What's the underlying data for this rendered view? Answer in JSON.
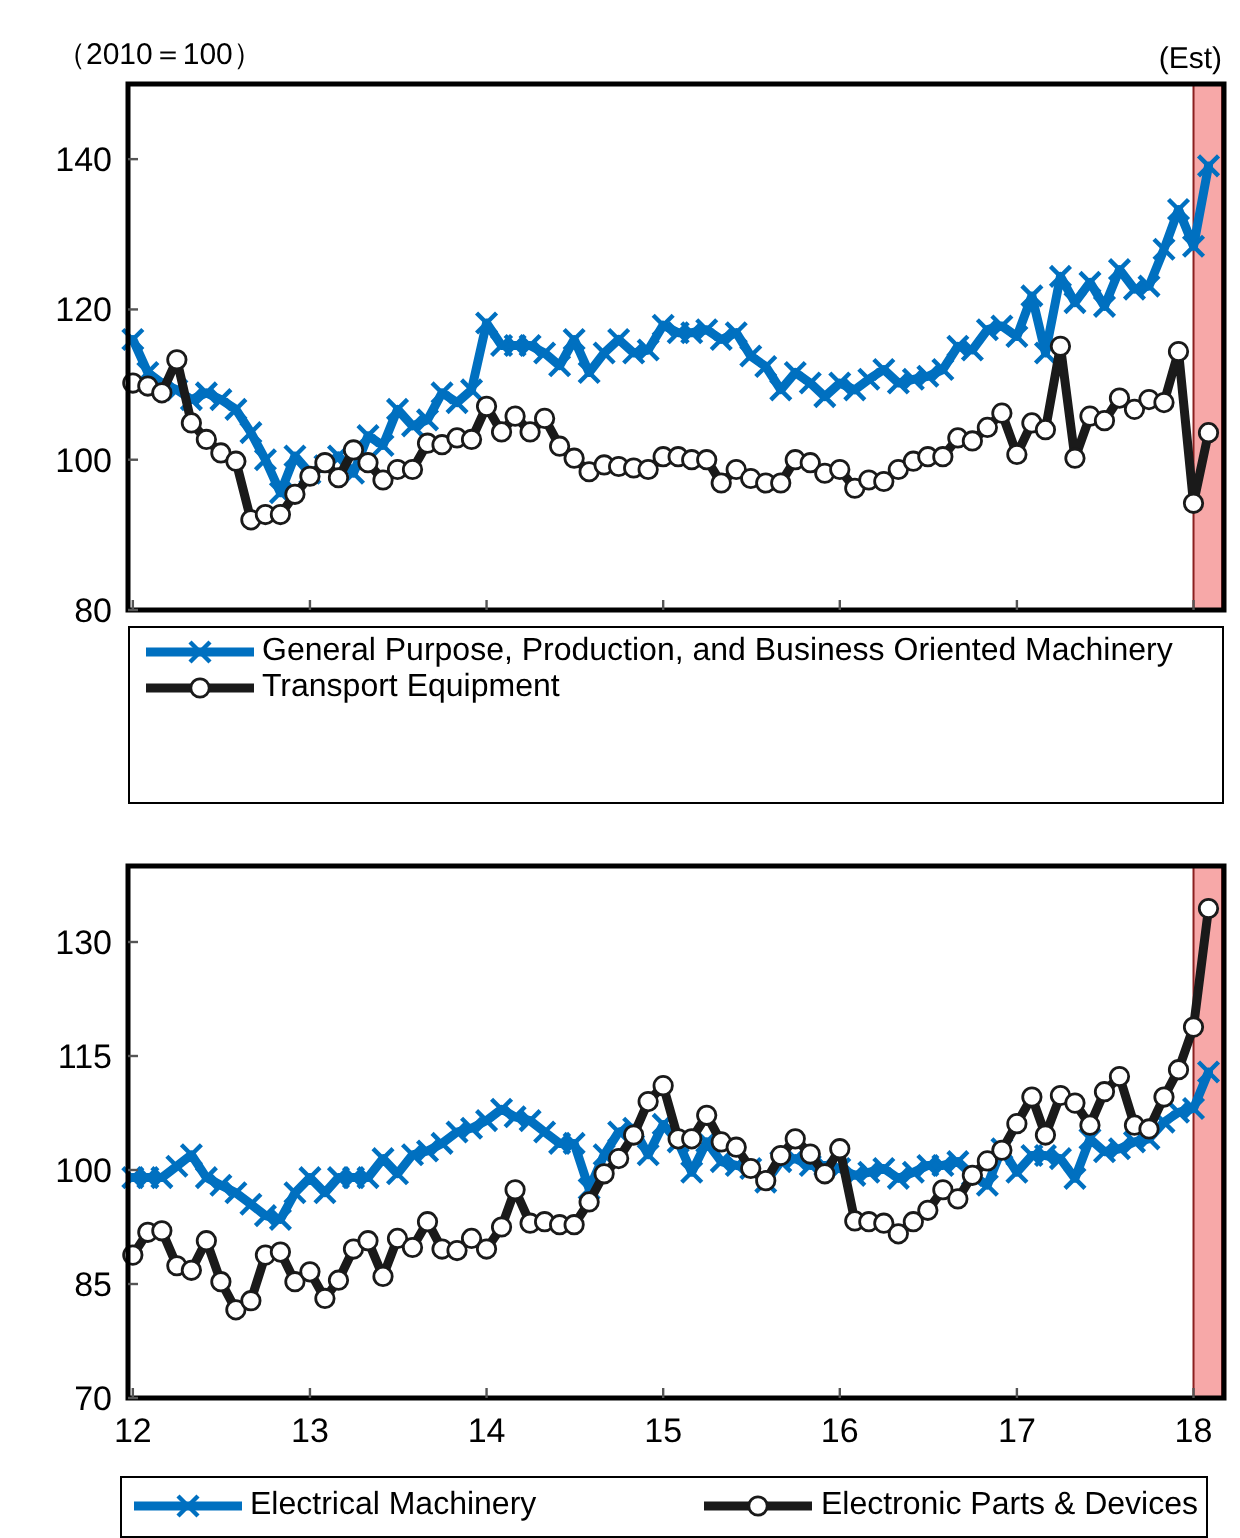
{
  "chart_data": [
    {
      "type": "line",
      "ylabel": "（2010＝100）",
      "x": [
        "2012-01",
        "2012-02",
        "2012-03",
        "2012-04",
        "2012-05",
        "2012-06",
        "2012-07",
        "2012-08",
        "2012-09",
        "2012-10",
        "2012-11",
        "2012-12",
        "2013-01",
        "2013-02",
        "2013-03",
        "2013-04",
        "2013-05",
        "2013-06",
        "2013-07",
        "2013-08",
        "2013-09",
        "2013-10",
        "2013-11",
        "2013-12",
        "2014-01",
        "2014-02",
        "2014-03",
        "2014-04",
        "2014-05",
        "2014-06",
        "2014-07",
        "2014-08",
        "2014-09",
        "2014-10",
        "2014-11",
        "2014-12",
        "2015-01",
        "2015-02",
        "2015-03",
        "2015-04",
        "2015-05",
        "2015-06",
        "2015-07",
        "2015-08",
        "2015-09",
        "2015-10",
        "2015-11",
        "2015-12",
        "2016-01",
        "2016-02",
        "2016-03",
        "2016-04",
        "2016-05",
        "2016-06",
        "2016-07",
        "2016-08",
        "2016-09",
        "2016-10",
        "2016-11",
        "2016-12",
        "2017-01",
        "2017-02",
        "2017-03",
        "2017-04",
        "2017-05",
        "2017-06",
        "2017-07",
        "2017-08",
        "2017-09",
        "2017-10",
        "2017-11",
        "2017-12",
        "2018-01",
        "2018-02"
      ],
      "series": [
        {
          "name": "General Purpose, Production, and Business Oriented Machinery",
          "color": "#0070c0",
          "marker": "cross",
          "values": [
            116,
            111.6,
            110.2,
            109.3,
            108,
            108.9,
            108,
            106.7,
            103.6,
            100,
            95.6,
            100.5,
            98.2,
            99.2,
            100.5,
            98.2,
            103.2,
            101.9,
            106.7,
            104.5,
            105.3,
            108.9,
            107.6,
            109.3,
            118.2,
            115.2,
            115.2,
            115.2,
            114.2,
            112.5,
            116,
            111.6,
            114.2,
            116,
            114.2,
            114.6,
            117.9,
            116.9,
            116.9,
            117.3,
            116,
            116.9,
            113.8,
            112.4,
            109.3,
            111.6,
            110.2,
            108.4,
            110.2,
            109.3,
            110.7,
            112,
            110.2,
            110.7,
            111.1,
            112,
            115.1,
            114.6,
            117.3,
            117.8,
            116.4,
            121.8,
            114.2,
            124.4,
            120.9,
            123.6,
            120.4,
            125.3,
            122.7,
            123.1,
            128,
            133.3,
            128.4,
            139.1
          ]
        },
        {
          "name": "Transport Equipment",
          "color": "#1a1a1a",
          "marker": "circle",
          "values": [
            110.2,
            109.8,
            108.9,
            113.3,
            104.9,
            102.7,
            100.9,
            99.8,
            92,
            92.7,
            92.7,
            95.4,
            97.8,
            99.6,
            97.6,
            101.3,
            99.6,
            97.3,
            98.7,
            98.7,
            102.2,
            102,
            102.9,
            102.7,
            107.1,
            103.7,
            105.8,
            103.7,
            105.5,
            101.8,
            100.2,
            98.4,
            99.3,
            99.1,
            98.9,
            98.7,
            100.4,
            100.4,
            100,
            100,
            96.9,
            98.7,
            97.5,
            96.9,
            96.9,
            100,
            99.6,
            98.2,
            98.7,
            96.2,
            97.3,
            97.1,
            98.7,
            99.8,
            100.4,
            100.4,
            102.9,
            102.5,
            104.3,
            106.2,
            100.7,
            104.9,
            104,
            115.1,
            100.2,
            105.8,
            105.2,
            108.2,
            106.7,
            108,
            107.6,
            114.4,
            94.2,
            103.6
          ]
        }
      ],
      "xlim": [
        "2011-12-22",
        "2018-03-05"
      ],
      "ylim": [
        80,
        150
      ],
      "xticks": [
        {
          "value": "2012-01-01",
          "label": null
        },
        {
          "value": "2013-01-01",
          "label": null
        },
        {
          "value": "2014-01-01",
          "label": null
        },
        {
          "value": "2015-01-01",
          "label": null
        },
        {
          "value": "2016-01-01",
          "label": null
        },
        {
          "value": "2017-01-01",
          "label": null
        },
        {
          "value": "2018-01-01",
          "label": null
        }
      ],
      "yticks": [
        80,
        100,
        120,
        140
      ],
      "tick_labels": "y",
      "bands": [
        {
          "axis": "x",
          "from": "2018-01-01",
          "to": "2018-03-01",
          "label": "(Est)",
          "color": "#f7a8a8"
        }
      ],
      "legend": "bottom"
    },
    {
      "type": "line",
      "x": [
        "2012-01",
        "2012-02",
        "2012-03",
        "2012-04",
        "2012-05",
        "2012-06",
        "2012-07",
        "2012-08",
        "2012-09",
        "2012-10",
        "2012-11",
        "2012-12",
        "2013-01",
        "2013-02",
        "2013-03",
        "2013-04",
        "2013-05",
        "2013-06",
        "2013-07",
        "2013-08",
        "2013-09",
        "2013-10",
        "2013-11",
        "2013-12",
        "2014-01",
        "2014-02",
        "2014-03",
        "2014-04",
        "2014-05",
        "2014-06",
        "2014-07",
        "2014-08",
        "2014-09",
        "2014-10",
        "2014-11",
        "2014-12",
        "2015-01",
        "2015-02",
        "2015-03",
        "2015-04",
        "2015-05",
        "2015-06",
        "2015-07",
        "2015-08",
        "2015-09",
        "2015-10",
        "2015-11",
        "2015-12",
        "2016-01",
        "2016-02",
        "2016-03",
        "2016-04",
        "2016-05",
        "2016-06",
        "2016-07",
        "2016-08",
        "2016-09",
        "2016-10",
        "2016-11",
        "2016-12",
        "2017-01",
        "2017-02",
        "2017-03",
        "2017-04",
        "2017-05",
        "2017-06",
        "2017-07",
        "2017-08",
        "2017-09",
        "2017-10",
        "2017-11",
        "2017-12",
        "2018-01",
        "2018-02"
      ],
      "series": [
        {
          "name": "Electrical Machinery",
          "color": "#0070c0",
          "marker": "cross",
          "values": [
            99,
            99,
            99,
            100.5,
            102,
            99,
            98,
            97,
            95.5,
            94,
            93.5,
            97,
            99,
            97,
            99,
            99,
            99,
            101.5,
            99.5,
            102,
            102.5,
            103.5,
            105,
            105.5,
            106.5,
            108,
            107,
            106.5,
            105,
            103.5,
            103.5,
            97.5,
            102,
            105,
            105.5,
            102,
            106,
            103.7,
            99.7,
            103.7,
            101.1,
            100.6,
            100.2,
            98.4,
            101.1,
            101.5,
            100.6,
            100.6,
            100.2,
            99.3,
            99.7,
            100.2,
            98.9,
            99.7,
            100.6,
            100.6,
            101.1,
            99.3,
            98,
            102.8,
            99.7,
            101.9,
            101.9,
            101.5,
            98.9,
            104.1,
            102.4,
            102.8,
            103.7,
            104.1,
            106.3,
            107.6,
            108.1,
            112.9
          ]
        },
        {
          "name": "Electronic Parts & Devices",
          "color": "#1a1a1a",
          "marker": "circle",
          "values": [
            88.8,
            91.8,
            92,
            87.4,
            86.8,
            90.7,
            85.3,
            81.6,
            82.8,
            88.8,
            89.2,
            85.3,
            86.6,
            83.1,
            85.5,
            89.6,
            90.7,
            86,
            91,
            89.8,
            93.2,
            89.6,
            89.4,
            91,
            89.6,
            92.5,
            97.4,
            93,
            93.2,
            92.8,
            92.8,
            95.8,
            99.5,
            101.5,
            104.6,
            109,
            111.1,
            104.1,
            104.1,
            107.2,
            103.7,
            103,
            100.2,
            98.6,
            101.9,
            104.1,
            102.1,
            99.5,
            102.8,
            93.3,
            93.2,
            93,
            91.6,
            93.2,
            94.7,
            97.4,
            96.2,
            99.3,
            101.2,
            102.6,
            106.1,
            109.6,
            104.6,
            109.8,
            108.8,
            105.9,
            110.3,
            112.3,
            105.9,
            105.4,
            109.6,
            113.2,
            118.8,
            134.4
          ]
        }
      ],
      "xlim": [
        "2011-12-22",
        "2018-03-05"
      ],
      "ylim": [
        70,
        140
      ],
      "xticks": [
        {
          "value": "2012-01-01",
          "label": "12"
        },
        {
          "value": "2013-01-01",
          "label": "13"
        },
        {
          "value": "2014-01-01",
          "label": "14"
        },
        {
          "value": "2015-01-01",
          "label": "15"
        },
        {
          "value": "2016-01-01",
          "label": "16"
        },
        {
          "value": "2017-01-01",
          "label": "17"
        },
        {
          "value": "2018-01-01",
          "label": "18"
        }
      ],
      "yticks": [
        70,
        85,
        100,
        115,
        130
      ],
      "bands": [
        {
          "axis": "x",
          "from": "2018-01-01",
          "to": "2018-03-01",
          "color": "#f7a8a8"
        }
      ],
      "legend": "bottom"
    }
  ]
}
